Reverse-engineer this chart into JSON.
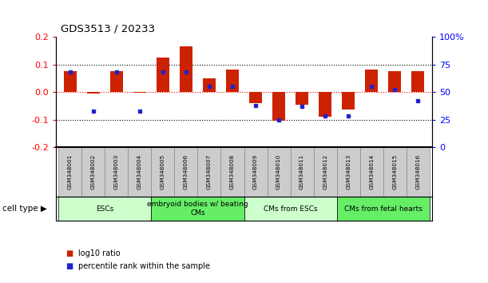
{
  "title": "GDS3513 / 20233",
  "samples": [
    "GSM348001",
    "GSM348002",
    "GSM348003",
    "GSM348004",
    "GSM348005",
    "GSM348006",
    "GSM348007",
    "GSM348008",
    "GSM348009",
    "GSM348010",
    "GSM348011",
    "GSM348012",
    "GSM348013",
    "GSM348014",
    "GSM348015",
    "GSM348016"
  ],
  "log10_ratio": [
    0.075,
    -0.005,
    0.075,
    -0.002,
    0.125,
    0.165,
    0.05,
    0.082,
    -0.04,
    -0.105,
    -0.045,
    -0.09,
    -0.065,
    0.08,
    0.075,
    0.075
  ],
  "percentile_rank": [
    68,
    33,
    68,
    33,
    68,
    68,
    55,
    55,
    38,
    25,
    37,
    28,
    28,
    55,
    52,
    42
  ],
  "ylim": [
    -0.2,
    0.2
  ],
  "yticks_left": [
    -0.2,
    -0.1,
    0.0,
    0.1,
    0.2
  ],
  "yticks_right": [
    0,
    25,
    50,
    75,
    100
  ],
  "yticks_right_pos": [
    -0.2,
    -0.1,
    0.0,
    0.1,
    0.2
  ],
  "hlines_dotted": [
    0.1,
    -0.1
  ],
  "hline_red": 0.0,
  "bar_color": "#cc2200",
  "dot_color": "#2222cc",
  "cell_type_groups": [
    {
      "label": "ESCs",
      "start": 0,
      "end": 3,
      "color": "#ccffcc"
    },
    {
      "label": "embryoid bodies w/ beating\nCMs",
      "start": 4,
      "end": 7,
      "color": "#66ee66"
    },
    {
      "label": "CMs from ESCs",
      "start": 8,
      "end": 11,
      "color": "#ccffcc"
    },
    {
      "label": "CMs from fetal hearts",
      "start": 12,
      "end": 15,
      "color": "#66ee66"
    }
  ],
  "legend_bar_label": "log10 ratio",
  "legend_dot_label": "percentile rank within the sample",
  "cell_type_label": "cell type"
}
